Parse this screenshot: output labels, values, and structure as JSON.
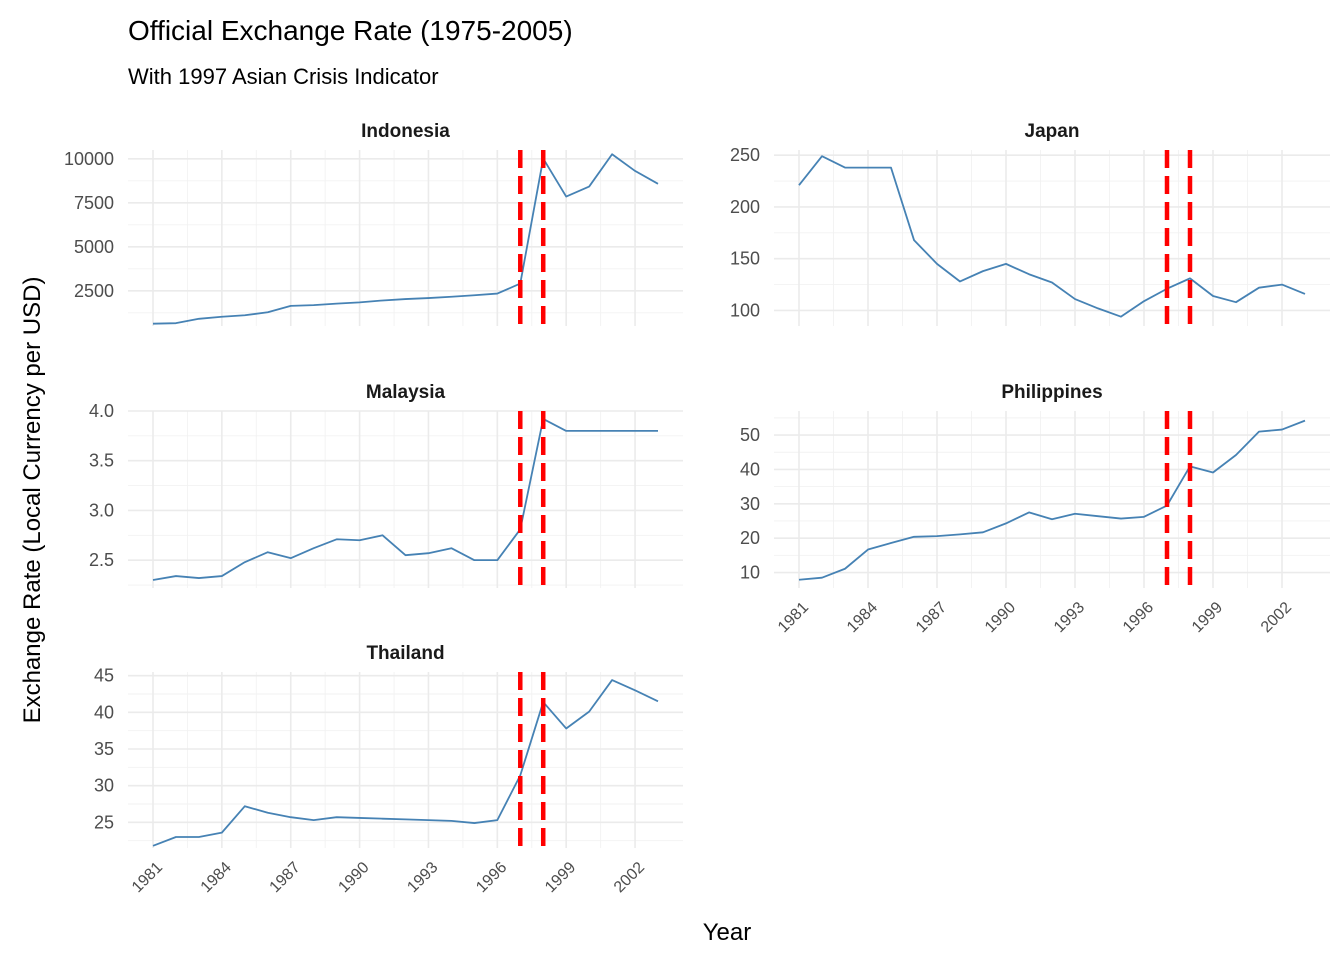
{
  "chart_data": {
    "type": "line",
    "title": "Official Exchange Rate (1975-2005)",
    "subtitle": "With 1997 Asian Crisis Indicator",
    "xlabel": "Year",
    "ylabel": "Exchange Rate (Local Currency per USD)",
    "x_ticks": [
      1981,
      1984,
      1987,
      1990,
      1993,
      1996,
      1999,
      2002
    ],
    "xlim": [
      1981,
      2003
    ],
    "crisis_years": [
      1997,
      1998
    ],
    "colors": {
      "line": "#4682b4",
      "crisis": "#ff0000"
    },
    "grid": true,
    "legend": "none",
    "panels": [
      {
        "name": "Indonesia",
        "ylim": [
          500,
          10500
        ],
        "y_ticks": [
          2500,
          5000,
          7500,
          10000
        ],
        "x": [
          1981,
          1982,
          1983,
          1984,
          1985,
          1986,
          1987,
          1988,
          1989,
          1990,
          1991,
          1992,
          1993,
          1994,
          1995,
          1996,
          1997,
          1998,
          1999,
          2000,
          2001,
          2002,
          2003
        ],
        "values": [
          631,
          661,
          909,
          1026,
          1111,
          1283,
          1644,
          1686,
          1770,
          1843,
          1950,
          2030,
          2087,
          2161,
          2249,
          2342,
          2909,
          10014,
          7855,
          8422,
          10261,
          9311,
          8577
        ]
      },
      {
        "name": "Japan",
        "ylim": [
          85,
          255
        ],
        "y_ticks": [
          100,
          150,
          200,
          250
        ],
        "x": [
          1981,
          1982,
          1983,
          1984,
          1985,
          1986,
          1987,
          1988,
          1989,
          1990,
          1991,
          1992,
          1993,
          1994,
          1995,
          1996,
          1997,
          1998,
          1999,
          2000,
          2001,
          2002,
          2003
        ],
        "values": [
          221,
          249,
          238,
          238,
          238,
          168,
          145,
          128,
          138,
          145,
          135,
          127,
          111,
          102,
          94,
          109,
          121,
          131,
          114,
          108,
          122,
          125,
          116
        ]
      },
      {
        "name": "Malaysia",
        "ylim": [
          2.22,
          4.0
        ],
        "y_ticks": [
          2.5,
          3.0,
          3.5,
          4.0
        ],
        "x": [
          1981,
          1982,
          1983,
          1984,
          1985,
          1986,
          1987,
          1988,
          1989,
          1990,
          1991,
          1992,
          1993,
          1994,
          1995,
          1996,
          1997,
          1998,
          1999,
          2000,
          2001,
          2002,
          2003
        ],
        "values": [
          2.3,
          2.34,
          2.32,
          2.34,
          2.48,
          2.58,
          2.52,
          2.62,
          2.71,
          2.7,
          2.75,
          2.55,
          2.57,
          2.62,
          2.5,
          2.5,
          2.81,
          3.92,
          3.8,
          3.8,
          3.8,
          3.8,
          3.8
        ]
      },
      {
        "name": "Philippines",
        "ylim": [
          5.5,
          57
        ],
        "y_ticks": [
          10,
          20,
          30,
          40,
          50
        ],
        "x": [
          1981,
          1982,
          1983,
          1984,
          1985,
          1986,
          1987,
          1988,
          1989,
          1990,
          1991,
          1992,
          1993,
          1994,
          1995,
          1996,
          1997,
          1998,
          1999,
          2000,
          2001,
          2002,
          2003
        ],
        "values": [
          7.9,
          8.5,
          11.1,
          16.7,
          18.6,
          20.4,
          20.6,
          21.1,
          21.7,
          24.3,
          27.5,
          25.5,
          27.1,
          26.4,
          25.7,
          26.2,
          29.5,
          40.9,
          39.1,
          44.2,
          51.0,
          51.6,
          54.2
        ]
      },
      {
        "name": "Thailand",
        "ylim": [
          21.5,
          45.5
        ],
        "y_ticks": [
          25,
          30,
          35,
          40,
          45
        ],
        "x": [
          1981,
          1982,
          1983,
          1984,
          1985,
          1986,
          1987,
          1988,
          1989,
          1990,
          1991,
          1992,
          1993,
          1994,
          1995,
          1996,
          1997,
          1998,
          1999,
          2000,
          2001,
          2002,
          2003
        ],
        "values": [
          21.8,
          23.0,
          23.0,
          23.6,
          27.2,
          26.3,
          25.7,
          25.3,
          25.7,
          25.6,
          25.5,
          25.4,
          25.3,
          25.2,
          24.9,
          25.3,
          31.4,
          41.4,
          37.8,
          40.1,
          44.4,
          43.0,
          41.5
        ]
      }
    ]
  }
}
